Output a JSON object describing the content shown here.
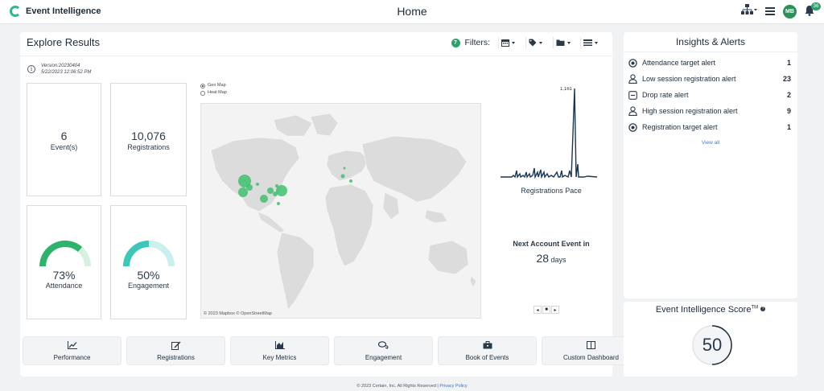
{
  "app": {
    "brand": "Event Intelligence",
    "page_title": "Home",
    "user_initials": "MB",
    "notification_count": "36"
  },
  "explore": {
    "title": "Explore Results",
    "filter_count": "7",
    "filters_label": "Filters:",
    "filter_buttons": [
      "calendar-icon",
      "tag-icon",
      "folder-icon",
      "list-icon"
    ],
    "version": "Version:20230404",
    "timestamp": "5/22/2023 12:06:52 PM",
    "tiles": {
      "events": {
        "value": "6",
        "label": "Event(s)"
      },
      "registrations": {
        "value": "10,076",
        "label": "Registrations"
      },
      "attendance": {
        "value": "73%",
        "label": "Attendance",
        "level": 0.73,
        "color": "#2eb36d"
      },
      "engagement": {
        "value": "50%",
        "label": "Engagement",
        "level": 0.5,
        "color": "#3cc7b8"
      }
    },
    "map": {
      "options": [
        "Geo Map",
        "Heat Map"
      ],
      "selected": "Geo Map",
      "attribution": "© 2023 Mapbox © OpenStreetMap"
    },
    "pace": {
      "peak_label": "1,161",
      "label": "Registrations Pace"
    },
    "next_event": {
      "label": "Next Account Event in",
      "days": "28",
      "unit": "days"
    },
    "pager": [
      "◂",
      "■",
      "▸"
    ]
  },
  "nav": [
    {
      "label": "Performance",
      "icon": "chart-line-icon"
    },
    {
      "label": "Registrations",
      "icon": "edit-icon"
    },
    {
      "label": "Key Metrics",
      "icon": "area-chart-icon"
    },
    {
      "label": "Engagement",
      "icon": "comments-icon"
    },
    {
      "label": "Book of Events",
      "icon": "briefcase-icon"
    },
    {
      "label": "Custom Dashboard",
      "icon": "columns-icon"
    }
  ],
  "insights": {
    "title": "Insights & Alerts",
    "items": [
      {
        "label": "Attendance target alert",
        "count": "1",
        "icon": "target-icon"
      },
      {
        "label": "Low session registration alert",
        "count": "23",
        "icon": "user-icon"
      },
      {
        "label": "Drop rate alert",
        "count": "2",
        "icon": "minus-square-icon"
      },
      {
        "label": "High session registration alert",
        "count": "9",
        "icon": "user-icon"
      },
      {
        "label": "Registration target alert",
        "count": "1",
        "icon": "target-icon"
      }
    ],
    "view_all": "View all"
  },
  "score": {
    "title": "Event Intelligence Score",
    "tm": "TM",
    "value": "50",
    "level": 0.5
  },
  "footer": {
    "text": "© 2023 Certain, Inc. All Rights Reserved | ",
    "link": "Privacy Policy"
  }
}
